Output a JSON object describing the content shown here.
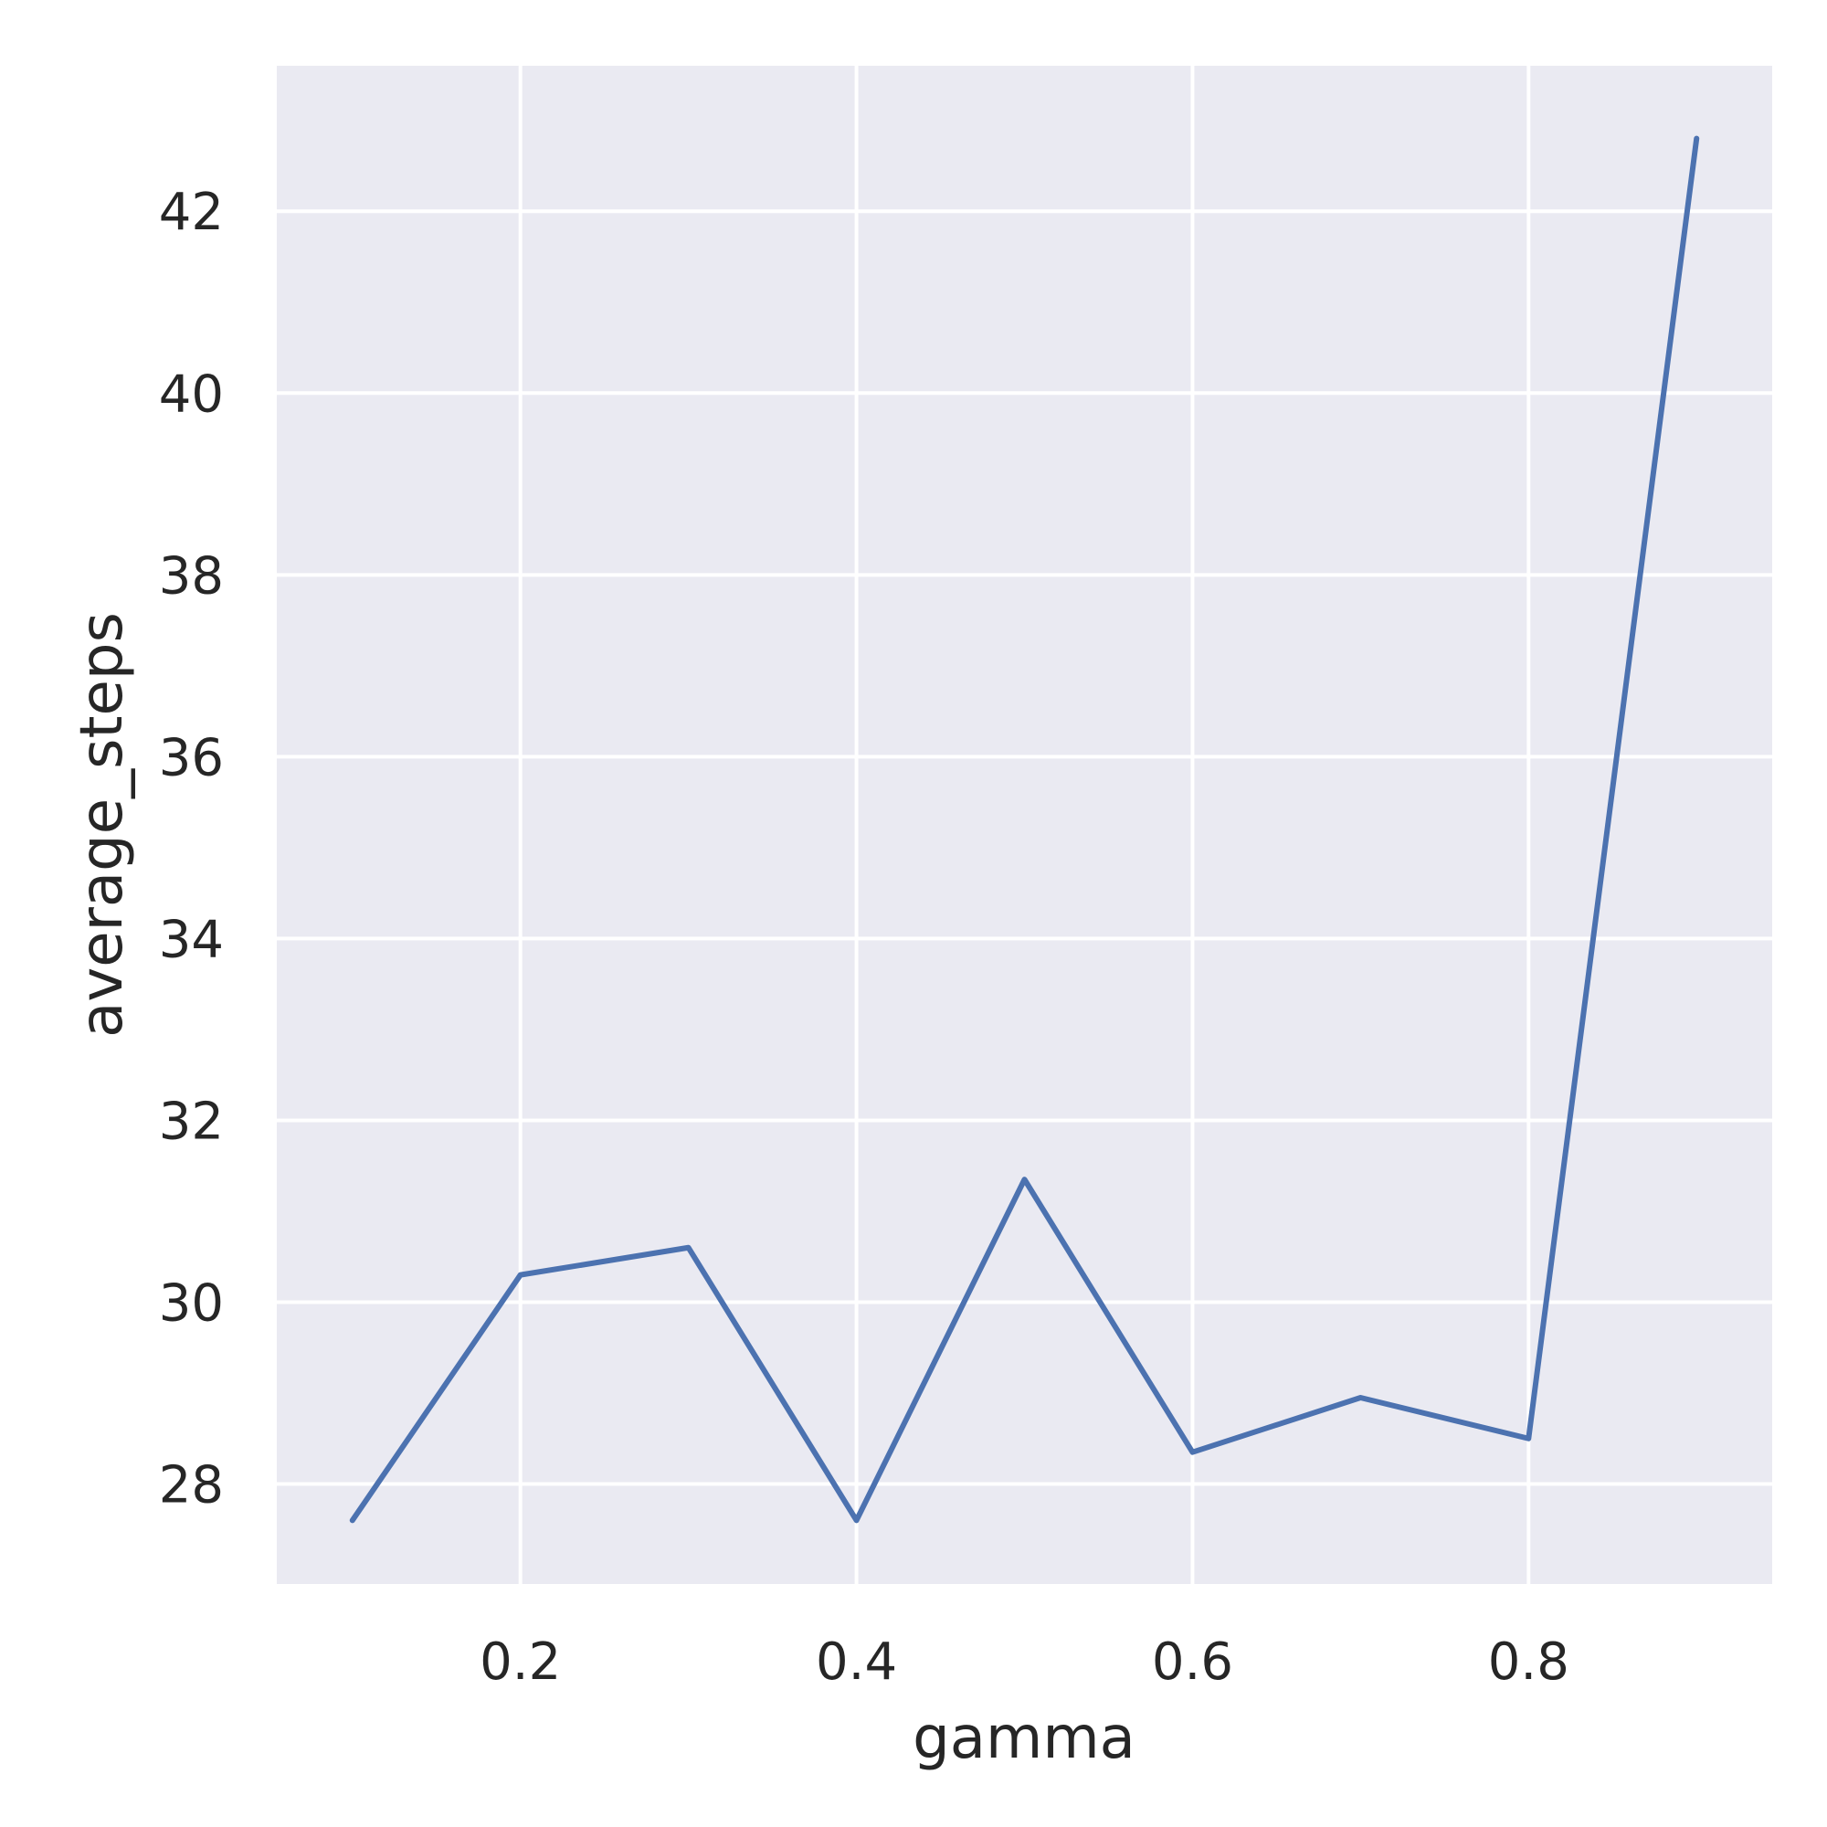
{
  "chart_data": {
    "type": "line",
    "xlabel": "gamma",
    "ylabel": "average_steps",
    "xlim": [
      0.055,
      0.945
    ],
    "ylim": [
      26.9,
      43.6
    ],
    "xticks": [
      0.2,
      0.4,
      0.6,
      0.8
    ],
    "yticks": [
      28,
      30,
      32,
      34,
      36,
      38,
      40,
      42
    ],
    "grid": true,
    "legend": "none",
    "colors": {
      "background": "#EAEAF2",
      "grid": "#FFFFFF",
      "line": "#4C72B0",
      "text": "#262626"
    },
    "series": [
      {
        "x": [
          0.1,
          0.2,
          0.3,
          0.4,
          0.5,
          0.6,
          0.7,
          0.8,
          0.9
        ],
        "y": [
          27.6,
          30.3,
          30.6,
          27.6,
          31.35,
          28.35,
          28.95,
          28.5,
          42.8
        ]
      }
    ]
  }
}
